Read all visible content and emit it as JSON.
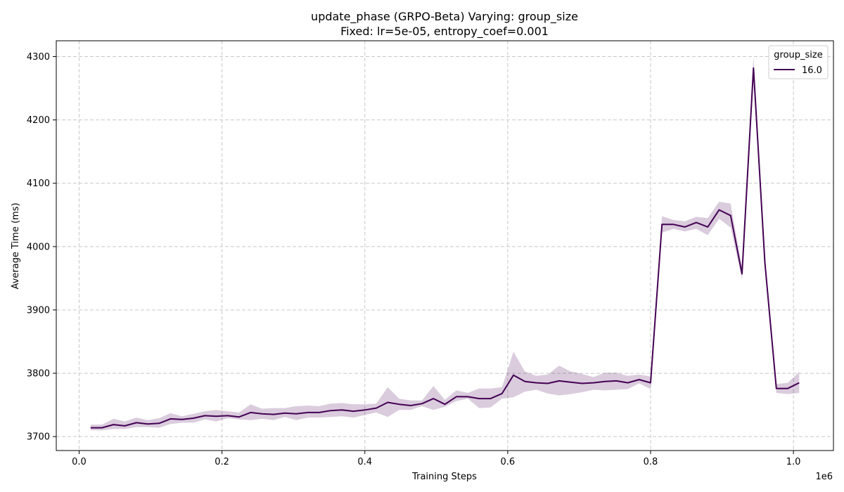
{
  "chart_data": {
    "type": "line",
    "title": "update_phase (GRPO-Beta) Varying: group_size",
    "subtitle": "Fixed: lr=5e-05, entropy_coef=0.001",
    "xlabel": "Training Steps",
    "ylabel": "Average Time (ms)",
    "x_offset_label": "1e6",
    "xlim": [
      -0.032,
      1.056
    ],
    "ylim": [
      3678,
      4325
    ],
    "x_ticks": [
      0.0,
      0.2,
      0.4,
      0.6,
      0.8,
      1.0
    ],
    "x_tick_labels": [
      "0.0",
      "0.2",
      "0.4",
      "0.6",
      "0.8",
      "1.0"
    ],
    "y_ticks": [
      3700,
      3800,
      3900,
      4000,
      4100,
      4200,
      4300
    ],
    "y_tick_labels": [
      "3700",
      "3800",
      "3900",
      "4000",
      "4100",
      "4200",
      "4300"
    ],
    "grid": true,
    "legend": {
      "title": "group_size",
      "position": "top-right"
    },
    "colors": {
      "line": "#440154",
      "band": "#440154"
    },
    "series": [
      {
        "name": "16.0",
        "x": [
          0.016,
          0.032,
          0.048,
          0.064,
          0.08,
          0.096,
          0.112,
          0.128,
          0.144,
          0.16,
          0.176,
          0.192,
          0.208,
          0.224,
          0.24,
          0.256,
          0.272,
          0.288,
          0.304,
          0.32,
          0.336,
          0.352,
          0.368,
          0.384,
          0.4,
          0.416,
          0.432,
          0.448,
          0.464,
          0.48,
          0.496,
          0.512,
          0.528,
          0.544,
          0.56,
          0.576,
          0.592,
          0.608,
          0.624,
          0.64,
          0.656,
          0.672,
          0.688,
          0.704,
          0.72,
          0.736,
          0.752,
          0.768,
          0.784,
          0.8,
          0.816,
          0.832,
          0.848,
          0.864,
          0.88,
          0.896,
          0.912,
          0.928,
          0.944,
          0.96,
          0.976,
          0.992,
          1.008
        ],
        "y": [
          3714,
          3714,
          3719,
          3717,
          3722,
          3720,
          3721,
          3728,
          3727,
          3729,
          3733,
          3732,
          3733,
          3731,
          3738,
          3736,
          3735,
          3737,
          3736,
          3738,
          3738,
          3741,
          3742,
          3740,
          3742,
          3745,
          3754,
          3751,
          3749,
          3752,
          3760,
          3751,
          3763,
          3763,
          3760,
          3760,
          3768,
          3797,
          3787,
          3785,
          3784,
          3788,
          3786,
          3784,
          3785,
          3787,
          3788,
          3785,
          3790,
          3785,
          4035,
          4035,
          4031,
          4038,
          4031,
          4058,
          4049,
          3957,
          4282,
          3975,
          3776,
          3776,
          3785
        ],
        "lower": [
          3710,
          3710,
          3712,
          3712,
          3715,
          3715,
          3714,
          3720,
          3722,
          3722,
          3727,
          3724,
          3729,
          3727,
          3726,
          3728,
          3726,
          3731,
          3726,
          3730,
          3730,
          3731,
          3732,
          3730,
          3734,
          3738,
          3731,
          3742,
          3742,
          3748,
          3742,
          3747,
          3756,
          3760,
          3745,
          3746,
          3760,
          3762,
          3771,
          3774,
          3768,
          3765,
          3767,
          3770,
          3774,
          3773,
          3774,
          3775,
          3784,
          3775,
          4022,
          4028,
          4024,
          4028,
          4018,
          4044,
          4030,
          3948,
          4262,
          3965,
          3769,
          3767,
          3769
        ],
        "upper": [
          3719,
          3719,
          3728,
          3724,
          3730,
          3726,
          3729,
          3737,
          3732,
          3736,
          3740,
          3742,
          3740,
          3738,
          3751,
          3744,
          3745,
          3745,
          3748,
          3749,
          3748,
          3752,
          3753,
          3751,
          3751,
          3752,
          3778,
          3760,
          3757,
          3757,
          3780,
          3758,
          3773,
          3769,
          3776,
          3776,
          3778,
          3834,
          3803,
          3796,
          3798,
          3812,
          3803,
          3799,
          3794,
          3801,
          3801,
          3796,
          3798,
          3795,
          4048,
          4042,
          4040,
          4047,
          4045,
          4071,
          4068,
          3967,
          4300,
          3985,
          3783,
          3785,
          3802
        ]
      }
    ]
  }
}
